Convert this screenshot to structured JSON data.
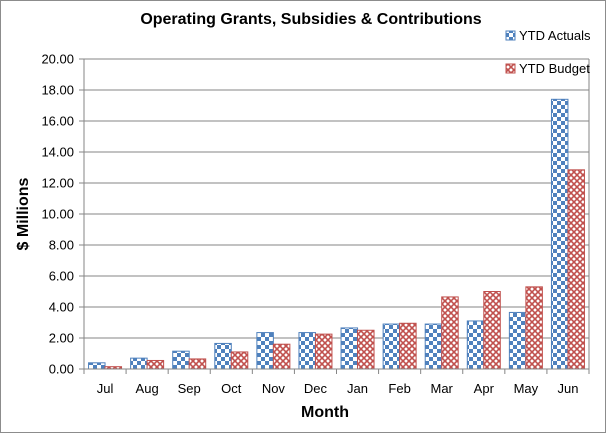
{
  "chart_data": {
    "type": "bar",
    "title": "Operating Grants, Subsidies & Contributions",
    "xlabel": "Month",
    "ylabel": "$ Millions",
    "ylim": [
      0,
      20
    ],
    "yticks": [
      "0.00",
      "2.00",
      "4.00",
      "6.00",
      "8.00",
      "10.00",
      "12.00",
      "14.00",
      "16.00",
      "18.00",
      "20.00"
    ],
    "grid": true,
    "legend_position": "top-right",
    "categories": [
      "Jul",
      "Aug",
      "Sep",
      "Oct",
      "Nov",
      "Dec",
      "Jan",
      "Feb",
      "Mar",
      "Apr",
      "May",
      "Jun"
    ],
    "series": [
      {
        "name": "YTD Actuals",
        "color": "#4f81bd",
        "pattern": "checkerboard",
        "values": [
          0.4,
          0.7,
          1.15,
          1.65,
          2.35,
          2.35,
          2.65,
          2.9,
          2.9,
          3.1,
          3.65,
          17.4
        ]
      },
      {
        "name": "YTD Budget",
        "color": "#c0504d",
        "pattern": "lattice",
        "values": [
          0.15,
          0.55,
          0.65,
          1.1,
          1.6,
          2.25,
          2.5,
          2.95,
          4.65,
          5.0,
          5.3,
          12.85
        ]
      }
    ]
  }
}
